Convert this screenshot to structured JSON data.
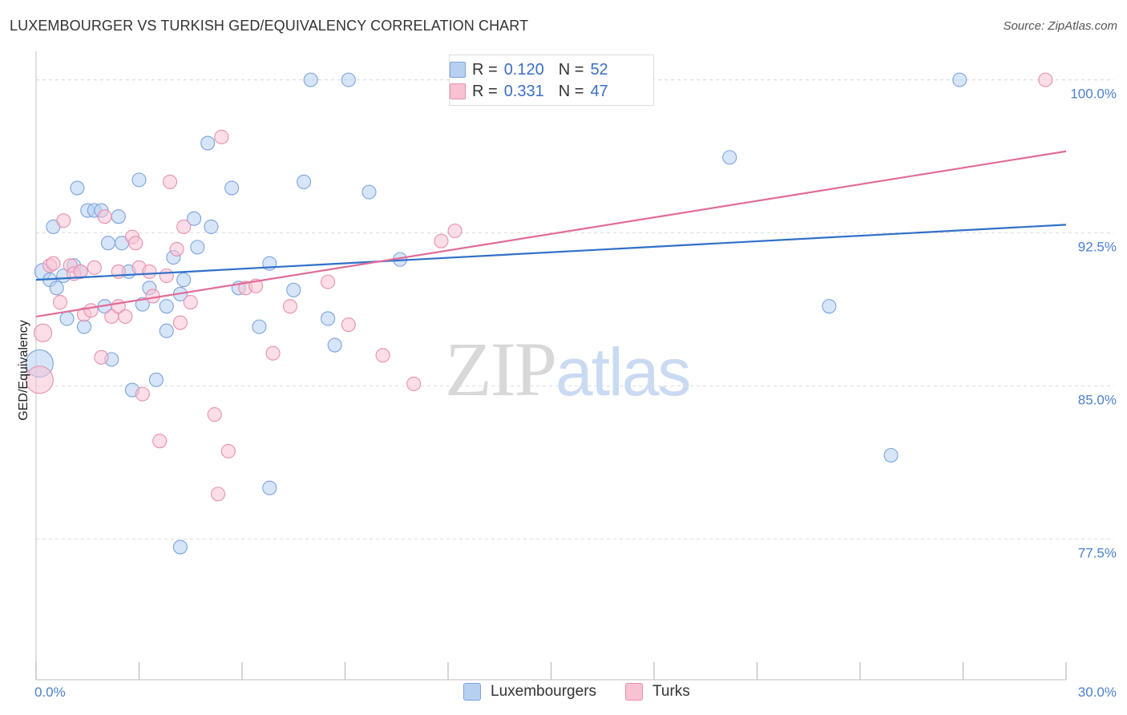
{
  "header": {
    "title": "LUXEMBOURGER VS TURKISH GED/EQUIVALENCY CORRELATION CHART",
    "source": "Source: ZipAtlas.com"
  },
  "watermark": {
    "zip": "ZIP",
    "atlas": "atlas"
  },
  "legend_top": {
    "rows": [
      {
        "r_label": "R =",
        "r_value": "0.120",
        "n_label": "N =",
        "n_value": "52"
      },
      {
        "r_label": "R =",
        "r_value": "0.331",
        "n_label": "N =",
        "n_value": "47"
      }
    ]
  },
  "legend_bottom": {
    "items": [
      {
        "label": "Luxembourgers"
      },
      {
        "label": "Turks"
      }
    ]
  },
  "colors": {
    "blue_fill": "#b7d0f2",
    "blue_stroke": "#7aa3dd",
    "blue_line": "#3070c8",
    "pink_fill": "#f8c2d3",
    "pink_stroke": "#e88fad",
    "pink_line": "#e06c98",
    "tick_label": "#4a80cf",
    "grid": "#dddddd"
  },
  "chart_data": {
    "type": "scatter",
    "title": "LUXEMBOURGER VS TURKISH GED/EQUIVALENCY CORRELATION CHART",
    "xlabel": "",
    "ylabel": "GED/Equivalency",
    "xlim": [
      0,
      30
    ],
    "ylim": [
      70.6,
      101.4
    ],
    "x_ticks": [
      0,
      3,
      6,
      9,
      12,
      15,
      18,
      21,
      24,
      27,
      30
    ],
    "x_tick_labels": [
      {
        "x": 0,
        "label": "0.0%"
      },
      {
        "x": 30,
        "label": "30.0%"
      }
    ],
    "y_ticks": [
      {
        "y": 77.5,
        "label": "77.5%"
      },
      {
        "y": 85.0,
        "label": "85.0%"
      },
      {
        "y": 92.5,
        "label": "92.5%"
      },
      {
        "y": 100.0,
        "label": "100.0%"
      }
    ],
    "grid": "horizontal dashed",
    "legend": "top-center",
    "series": [
      {
        "name": "Luxembourgers",
        "color": "#b7d0f2",
        "r": 0.12,
        "n": 52,
        "trend": [
          {
            "x": 0.0,
            "y": 90.2
          },
          {
            "x": 30.0,
            "y": 92.9
          }
        ],
        "points": [
          {
            "x": 0.1,
            "y": 86.1,
            "s": 2.0
          },
          {
            "x": 0.2,
            "y": 90.6,
            "s": 1.2
          },
          {
            "x": 0.4,
            "y": 90.2,
            "s": 1.0
          },
          {
            "x": 0.5,
            "y": 92.8,
            "s": 1.0
          },
          {
            "x": 0.6,
            "y": 89.8,
            "s": 1.0
          },
          {
            "x": 0.8,
            "y": 90.4,
            "s": 1.0
          },
          {
            "x": 0.9,
            "y": 88.3,
            "s": 1.0
          },
          {
            "x": 1.1,
            "y": 90.9,
            "s": 1.0
          },
          {
            "x": 1.2,
            "y": 94.7,
            "s": 1.0
          },
          {
            "x": 1.3,
            "y": 90.6,
            "s": 1.0
          },
          {
            "x": 1.4,
            "y": 87.9,
            "s": 1.0
          },
          {
            "x": 1.5,
            "y": 93.6,
            "s": 1.0
          },
          {
            "x": 1.7,
            "y": 93.6,
            "s": 1.0
          },
          {
            "x": 1.9,
            "y": 93.6,
            "s": 1.0
          },
          {
            "x": 2.0,
            "y": 88.9,
            "s": 1.0
          },
          {
            "x": 2.1,
            "y": 92.0,
            "s": 1.0
          },
          {
            "x": 2.2,
            "y": 86.3,
            "s": 1.0
          },
          {
            "x": 2.4,
            "y": 93.3,
            "s": 1.0
          },
          {
            "x": 2.5,
            "y": 92.0,
            "s": 1.0
          },
          {
            "x": 2.7,
            "y": 90.6,
            "s": 1.0
          },
          {
            "x": 2.8,
            "y": 84.8,
            "s": 1.0
          },
          {
            "x": 3.0,
            "y": 95.1,
            "s": 1.0
          },
          {
            "x": 3.1,
            "y": 89.0,
            "s": 1.0
          },
          {
            "x": 3.3,
            "y": 89.8,
            "s": 1.0
          },
          {
            "x": 3.5,
            "y": 85.3,
            "s": 1.0
          },
          {
            "x": 3.8,
            "y": 88.9,
            "s": 1.0
          },
          {
            "x": 3.8,
            "y": 87.7,
            "s": 1.0
          },
          {
            "x": 4.0,
            "y": 91.3,
            "s": 1.0
          },
          {
            "x": 4.2,
            "y": 89.5,
            "s": 1.0
          },
          {
            "x": 4.2,
            "y": 77.1,
            "s": 1.0
          },
          {
            "x": 4.3,
            "y": 90.2,
            "s": 1.0
          },
          {
            "x": 4.6,
            "y": 93.2,
            "s": 1.0
          },
          {
            "x": 4.7,
            "y": 91.8,
            "s": 1.0
          },
          {
            "x": 5.0,
            "y": 96.9,
            "s": 1.0
          },
          {
            "x": 5.1,
            "y": 92.8,
            "s": 1.0
          },
          {
            "x": 5.7,
            "y": 94.7,
            "s": 1.0
          },
          {
            "x": 5.9,
            "y": 89.8,
            "s": 1.0
          },
          {
            "x": 6.5,
            "y": 87.9,
            "s": 1.0
          },
          {
            "x": 6.8,
            "y": 91.0,
            "s": 1.0
          },
          {
            "x": 6.8,
            "y": 80.0,
            "s": 1.0
          },
          {
            "x": 7.5,
            "y": 89.7,
            "s": 1.0
          },
          {
            "x": 7.8,
            "y": 95.0,
            "s": 1.0
          },
          {
            "x": 8.0,
            "y": 100.0,
            "s": 1.0
          },
          {
            "x": 8.5,
            "y": 88.3,
            "s": 1.0
          },
          {
            "x": 8.7,
            "y": 87.0,
            "s": 1.0
          },
          {
            "x": 9.1,
            "y": 100.0,
            "s": 1.0
          },
          {
            "x": 9.7,
            "y": 94.5,
            "s": 1.0
          },
          {
            "x": 10.6,
            "y": 91.2,
            "s": 1.0
          },
          {
            "x": 20.2,
            "y": 96.2,
            "s": 1.0
          },
          {
            "x": 23.1,
            "y": 88.9,
            "s": 1.0
          },
          {
            "x": 24.9,
            "y": 81.6,
            "s": 1.0
          },
          {
            "x": 26.9,
            "y": 100.0,
            "s": 1.0
          }
        ]
      },
      {
        "name": "Turks",
        "color": "#f8c2d3",
        "r": 0.331,
        "n": 47,
        "trend": [
          {
            "x": 0.0,
            "y": 88.4
          },
          {
            "x": 30.0,
            "y": 96.5
          }
        ],
        "points": [
          {
            "x": 0.1,
            "y": 85.3,
            "s": 2.0
          },
          {
            "x": 0.2,
            "y": 87.6,
            "s": 1.3
          },
          {
            "x": 0.4,
            "y": 90.9,
            "s": 1.0
          },
          {
            "x": 0.5,
            "y": 91.0,
            "s": 1.0
          },
          {
            "x": 0.7,
            "y": 89.1,
            "s": 1.0
          },
          {
            "x": 0.8,
            "y": 93.1,
            "s": 1.0
          },
          {
            "x": 1.0,
            "y": 90.9,
            "s": 1.0
          },
          {
            "x": 1.1,
            "y": 90.5,
            "s": 1.0
          },
          {
            "x": 1.3,
            "y": 90.6,
            "s": 1.0
          },
          {
            "x": 1.4,
            "y": 88.5,
            "s": 1.0
          },
          {
            "x": 1.6,
            "y": 88.7,
            "s": 1.0
          },
          {
            "x": 1.7,
            "y": 90.8,
            "s": 1.0
          },
          {
            "x": 1.9,
            "y": 86.4,
            "s": 1.0
          },
          {
            "x": 2.0,
            "y": 93.3,
            "s": 1.0
          },
          {
            "x": 2.2,
            "y": 88.4,
            "s": 1.0
          },
          {
            "x": 2.4,
            "y": 90.6,
            "s": 1.0
          },
          {
            "x": 2.4,
            "y": 88.9,
            "s": 1.0
          },
          {
            "x": 2.6,
            "y": 88.4,
            "s": 1.0
          },
          {
            "x": 2.8,
            "y": 92.3,
            "s": 1.0
          },
          {
            "x": 2.9,
            "y": 92.0,
            "s": 1.0
          },
          {
            "x": 3.0,
            "y": 90.8,
            "s": 1.0
          },
          {
            "x": 3.1,
            "y": 84.6,
            "s": 1.0
          },
          {
            "x": 3.3,
            "y": 90.6,
            "s": 1.0
          },
          {
            "x": 3.4,
            "y": 89.4,
            "s": 1.0
          },
          {
            "x": 3.6,
            "y": 82.3,
            "s": 1.0
          },
          {
            "x": 3.8,
            "y": 90.4,
            "s": 1.0
          },
          {
            "x": 3.9,
            "y": 95.0,
            "s": 1.0
          },
          {
            "x": 4.1,
            "y": 91.7,
            "s": 1.0
          },
          {
            "x": 4.2,
            "y": 88.1,
            "s": 1.0
          },
          {
            "x": 4.3,
            "y": 92.8,
            "s": 1.0
          },
          {
            "x": 4.5,
            "y": 89.1,
            "s": 1.0
          },
          {
            "x": 5.2,
            "y": 83.6,
            "s": 1.0
          },
          {
            "x": 5.3,
            "y": 79.7,
            "s": 1.0
          },
          {
            "x": 5.4,
            "y": 97.2,
            "s": 1.0
          },
          {
            "x": 5.6,
            "y": 81.8,
            "s": 1.0
          },
          {
            "x": 6.1,
            "y": 89.8,
            "s": 1.0
          },
          {
            "x": 6.4,
            "y": 89.9,
            "s": 1.0
          },
          {
            "x": 6.9,
            "y": 86.6,
            "s": 1.0
          },
          {
            "x": 7.4,
            "y": 88.9,
            "s": 1.0
          },
          {
            "x": 8.5,
            "y": 90.1,
            "s": 1.0
          },
          {
            "x": 9.1,
            "y": 88.0,
            "s": 1.0
          },
          {
            "x": 10.1,
            "y": 86.5,
            "s": 1.0
          },
          {
            "x": 11.0,
            "y": 85.1,
            "s": 1.0
          },
          {
            "x": 11.8,
            "y": 92.1,
            "s": 1.0
          },
          {
            "x": 12.2,
            "y": 92.6,
            "s": 1.0
          },
          {
            "x": 12.3,
            "y": 100.0,
            "s": 1.0
          },
          {
            "x": 29.4,
            "y": 100.0,
            "s": 1.0
          }
        ]
      }
    ]
  }
}
